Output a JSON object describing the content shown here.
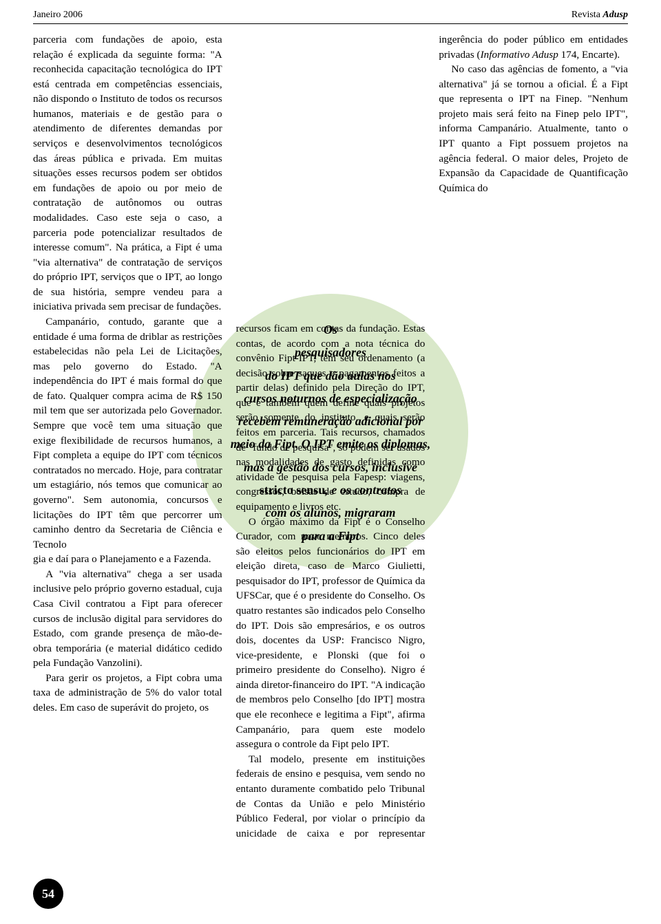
{
  "header": {
    "left": "Janeiro 2006",
    "right_revista": "Revista ",
    "right_adusp": "Adusp"
  },
  "page_number": "54",
  "callout": "Os pesquisadores do IPT que dão aulas nos cursos noturnos de especialização recebem remuneração adicional por meio da Fipt. O IPT emite os diplomas, mas a gestão dos cursos, inclusive stricto sensu, e os contratos com os alunos, migraram para a Fipt",
  "col1": {
    "p1": "parceria com fundações de apoio, esta relação é explicada da seguinte forma: \"A reconhecida capacitação tecnológica do IPT está centrada em competências essenciais, não dispondo o Instituto de todos os recursos humanos, materiais e de gestão para o atendimento de diferentes demandas por serviços e desenvolvimentos tecnológicos das áreas pública e privada. Em muitas situações esses recursos podem ser obtidos em fundações de apoio ou por meio de contratação de autônomos ou outras modalidades. Caso este seja o caso, a parceria pode potencializar resultados de interesse comum\". Na prática, a Fipt é uma \"via alternativa\" de contratação de serviços do próprio IPT, serviços que o IPT, ao longo de sua história, sempre vendeu para a iniciativa privada sem precisar de fundações.",
    "p2": "Campanário, contudo, garante que a entidade é uma forma de driblar as restrições estabelecidas não pela Lei de Licitações, mas pelo governo do Estado. \"A independência do IPT é mais formal do que de fato. Qualquer compra acima de R$ 150 mil tem que ser autorizada pelo Governador. Sempre que você tem uma situação que exige flexibilidade de recursos humanos, a Fipt completa a equipe do IPT com técnicos contratados no mercado. Hoje, para contratar um estagiário, nós temos que comunicar ao governo\". Sem autonomia, concursos e licitações do IPT têm que percorrer um caminho dentro da Secretaria de Ciência e Tecnolo"
  },
  "col2": {
    "p1a": "gia e daí para o Planejamento e a Fazenda.",
    "p1b": "A \"via alternativa\" chega a ser usada inclusive pelo próprio governo estadual, cuja Casa Civil contratou a Fipt para oferecer cursos de inclusão digital para servidores do Estado, com grande presença de mão-de-obra temporária (e material didático cedido pela Fundação Vanzolini).",
    "p1c": "Para gerir os projetos, a Fipt cobra uma taxa de administração de 5% do valor total deles. Em caso de superávit do projeto, os",
    "p2": "recursos ficam em contas da fundação. Estas contas, de acordo com a nota técnica do convênio Fipt-IPT, têm seu ordenamento (a decisão sobre saques e pagamentos feitos a partir delas) definido pela Direção do IPT, que é também quem define quais projetos serão somente do instituto, e quais serão feitos em parceria. Tais recursos, chamados de \"fundo de pesquisa\", só podem ser usados nas modalidades de gasto definidas como atividade de"
  },
  "col3": {
    "p1": "pesquisa pela Fapesp: viagens, congressos, bolsas de estudo, compra de equipamento e livros etc.",
    "p2a": "O órgão máximo da Fipt é o Conselho Curador, com nove membros. Cinco deles são eleitos pelos funcionários do IPT em eleição direta, caso de Marco Giulietti, pesquisador do IPT, professor de Química da UFSCar, que é o presidente do Conselho. Os quatro restantes são indicados pelo Conselho do IPT. Dois são empresários, e os outros dois, docentes da USP: Francisco Nigro, vice-presidente, e Plonski (que foi o primeiro presidente do Conselho). Nigro é ainda diretor-financeiro do IPT. \"A indicação de membros pelo Conselho [do IPT] mostra que ele reconhece e legitima a Fipt\", afirma Campanário, para quem este modelo assegura o controle da Fipt pelo IPT.",
    "p2b": "Tal modelo, presente em instituições federais de ensino e pesquisa, vem sendo no entanto duramente combatido pelo Tribunal de Contas da União e pelo Ministério Público Federal, por violar o princípio da unicidade de caixa e por representar ingerência do poder público em entidades privadas (",
    "p2b_ital": "Informativo Adusp",
    "p2b_end": " 174, Encarte).",
    "p3": "No caso das agências de fomento, a \"via alternativa\" já se tornou a oficial. É a Fipt que representa o IPT na Finep. \"Nenhum projeto mais será feito na Finep pelo IPT\", informa Campanário. Atualmente, tanto o IPT quanto a Fipt possuem projetos na agência federal. O maior deles, Projeto de Expansão da Capacidade de Quantificação Química do"
  }
}
